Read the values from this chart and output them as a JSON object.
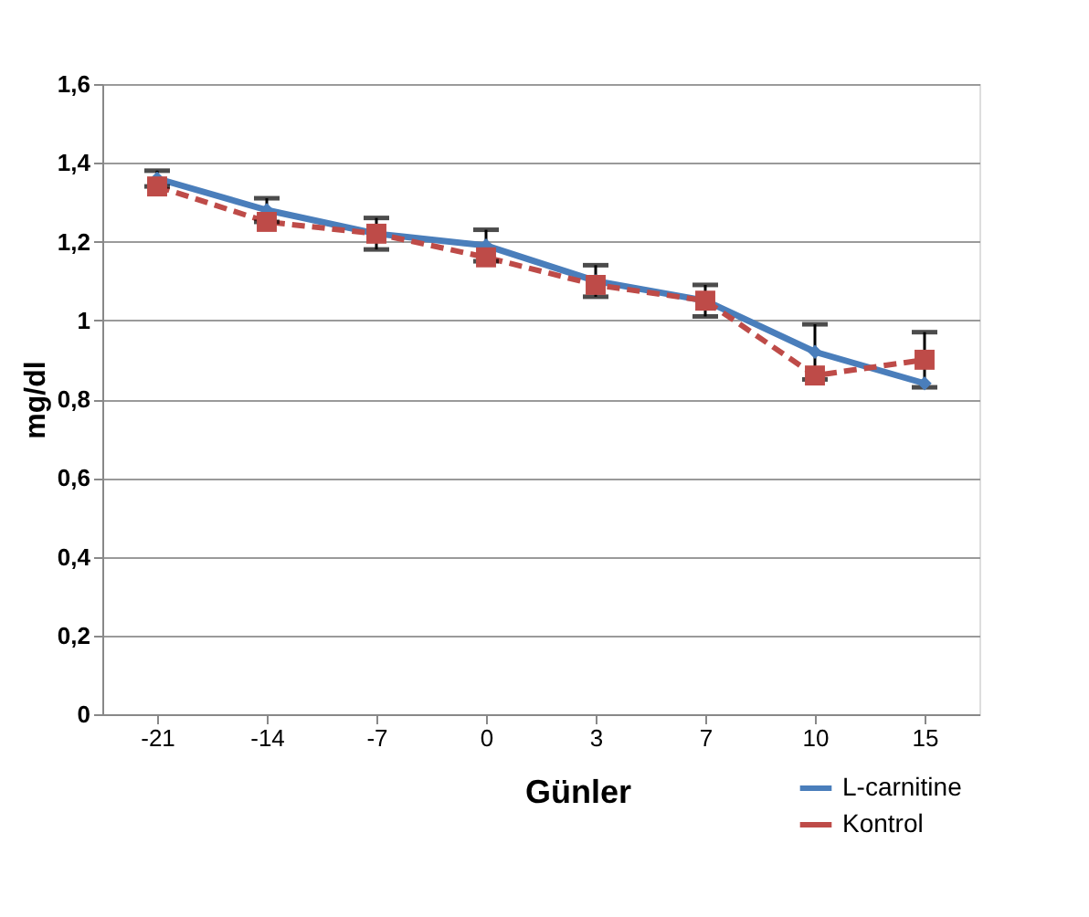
{
  "chart_data": {
    "type": "line",
    "xlabel": "Günler",
    "ylabel": "mg/dl",
    "categories": [
      "-21",
      "-14",
      "-7",
      "0",
      "3",
      "7",
      "10",
      "15"
    ],
    "series": [
      {
        "name": "L-carnitine",
        "color": "#4a7ebb",
        "marker": "diamond",
        "line_style": "solid",
        "values": [
          1.36,
          1.28,
          1.22,
          1.19,
          1.1,
          1.05,
          0.92,
          0.84
        ],
        "errors": [
          0.02,
          0.03,
          0.04,
          0.04,
          0.04,
          0.04,
          0.07,
          null
        ]
      },
      {
        "name": "Kontrol",
        "color": "#be4b48",
        "marker": "square",
        "line_style": "dashed",
        "values": [
          1.34,
          1.25,
          1.22,
          1.16,
          1.09,
          1.05,
          0.86,
          0.9
        ],
        "errors": [
          null,
          null,
          null,
          null,
          null,
          null,
          null,
          0.07
        ]
      }
    ],
    "ylim": [
      0,
      1.6
    ],
    "yticks": [
      0,
      {
        "value": 0.2,
        "label": "0,2"
      },
      {
        "value": 0.4,
        "label": "0,4"
      },
      {
        "value": 0.6,
        "label": "0,6"
      },
      {
        "value": 0.8,
        "label": "0,8"
      },
      1,
      {
        "value": 1.2,
        "label": "1,2"
      },
      {
        "value": 1.4,
        "label": "1,4"
      },
      {
        "value": 1.6,
        "label": "1,6"
      }
    ],
    "grid": "y",
    "legend": "bottom right"
  }
}
